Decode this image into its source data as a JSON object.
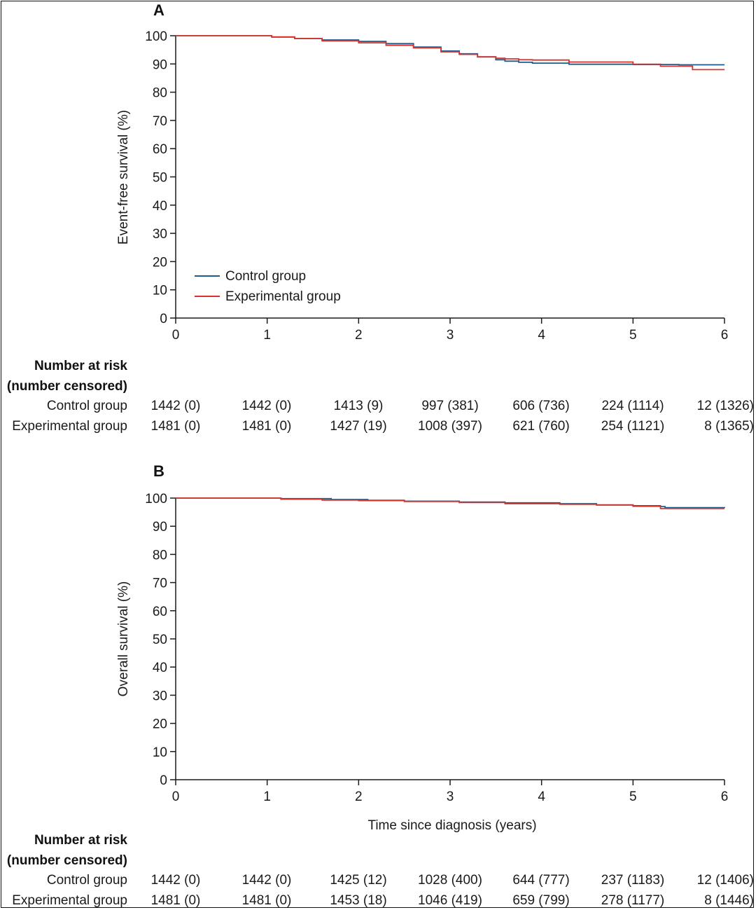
{
  "colors": {
    "control": "#1f5a8c",
    "experimental": "#d9342b",
    "axis": "#1a1a1a"
  },
  "risk_table": {
    "heading_line1": "Number at risk",
    "heading_line2": "(number censored)"
  },
  "chart_data": [
    {
      "type": "line",
      "panel": "A",
      "ylabel": "Event-free survival (%)",
      "xlabel": "",
      "xlim": [
        0,
        6
      ],
      "ylim": [
        0,
        100
      ],
      "x_ticks": [
        "0",
        "1",
        "2",
        "3",
        "4",
        "5",
        "6"
      ],
      "y_ticks": [
        "0",
        "10",
        "20",
        "30",
        "40",
        "50",
        "60",
        "70",
        "80",
        "90",
        "100"
      ],
      "legend": {
        "placement": "bottom-left",
        "entries": [
          "Control group",
          "Experimental group"
        ]
      },
      "series": [
        {
          "name": "Control group",
          "color_key": "control",
          "x": [
            0,
            1.05,
            1.3,
            1.6,
            2.0,
            2.3,
            2.6,
            2.9,
            3.1,
            3.3,
            3.5,
            3.6,
            3.75,
            3.9,
            4.3,
            5.0,
            5.5,
            6.0
          ],
          "y": [
            100,
            99.5,
            99.0,
            98.5,
            98.0,
            97.2,
            96.0,
            94.6,
            93.6,
            92.5,
            91.5,
            91.0,
            90.6,
            90.3,
            89.9,
            89.8,
            89.7,
            89.7
          ]
        },
        {
          "name": "Experimental group",
          "color_key": "experimental",
          "x": [
            0,
            1.05,
            1.3,
            1.6,
            2.0,
            2.3,
            2.6,
            2.9,
            3.1,
            3.3,
            3.5,
            3.6,
            3.75,
            3.9,
            4.3,
            5.0,
            5.3,
            5.65,
            6.0
          ],
          "y": [
            100,
            99.6,
            99.0,
            98.2,
            97.5,
            96.6,
            95.7,
            94.3,
            93.4,
            92.5,
            92.0,
            91.8,
            91.5,
            91.4,
            90.7,
            89.9,
            89.2,
            88.0,
            88.0
          ]
        }
      ],
      "risk_rows": [
        {
          "label": "Control group",
          "values": [
            "1442 (0)",
            "1442 (0)",
            "1413 (9)",
            "997 (381)",
            "606 (736)",
            "224 (1114)",
            "12 (1326)"
          ]
        },
        {
          "label": "Experimental group",
          "values": [
            "1481 (0)",
            "1481 (0)",
            "1427 (19)",
            "1008 (397)",
            "621 (760)",
            "254 (1121)",
            "8 (1365)"
          ]
        }
      ]
    },
    {
      "type": "line",
      "panel": "B",
      "ylabel": "Overall survival (%)",
      "xlabel": "Time since diagnosis (years)",
      "xlim": [
        0,
        6
      ],
      "ylim": [
        0,
        100
      ],
      "x_ticks": [
        "0",
        "1",
        "2",
        "3",
        "4",
        "5",
        "6"
      ],
      "y_ticks": [
        "0",
        "10",
        "20",
        "30",
        "40",
        "50",
        "60",
        "70",
        "80",
        "90",
        "100"
      ],
      "series": [
        {
          "name": "Control group",
          "color_key": "control",
          "x": [
            0,
            1.15,
            1.7,
            2.1,
            2.5,
            3.1,
            3.6,
            4.2,
            4.6,
            5.0,
            5.3,
            5.35,
            6.0
          ],
          "y": [
            100,
            99.8,
            99.5,
            99.2,
            98.9,
            98.6,
            98.3,
            98.0,
            97.6,
            97.3,
            97.0,
            96.6,
            96.5
          ]
        },
        {
          "name": "Experimental group",
          "color_key": "experimental",
          "x": [
            0,
            1.15,
            1.6,
            2.0,
            2.5,
            3.1,
            3.6,
            4.2,
            4.6,
            5.0,
            5.3,
            6.0
          ],
          "y": [
            100,
            99.6,
            99.3,
            99.1,
            98.8,
            98.4,
            98.0,
            97.8,
            97.5,
            97.1,
            96.3,
            96.3
          ]
        }
      ],
      "risk_rows": [
        {
          "label": "Control group",
          "values": [
            "1442 (0)",
            "1442 (0)",
            "1425 (12)",
            "1028 (400)",
            "644 (777)",
            "237 (1183)",
            "12 (1406)"
          ]
        },
        {
          "label": "Experimental group",
          "values": [
            "1481 (0)",
            "1481 (0)",
            "1453 (18)",
            "1046 (419)",
            "659 (799)",
            "278 (1177)",
            "8 (1446)"
          ]
        }
      ]
    }
  ]
}
